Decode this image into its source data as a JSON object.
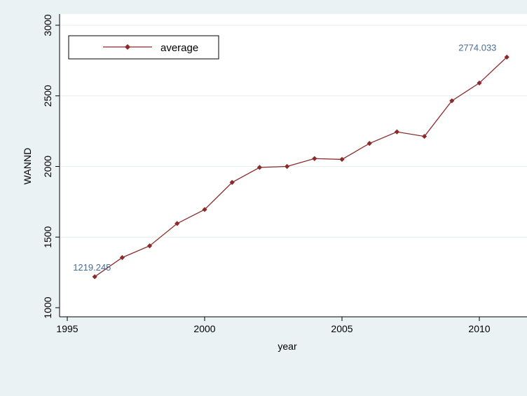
{
  "chart_data": {
    "type": "line",
    "xlabel": "year",
    "ylabel": "WANND",
    "xlim": [
      1995,
      2011
    ],
    "ylim": [
      1000,
      3000
    ],
    "x_ticks": [
      1995,
      2000,
      2005,
      2010
    ],
    "y_ticks": [
      1000,
      1500,
      2000,
      2500,
      3000
    ],
    "grid": true,
    "legend_position": "top-left",
    "series": [
      {
        "name": "average",
        "color": "#8b2a2a",
        "marker": "diamond",
        "x": [
          1996,
          1997,
          1998,
          1999,
          2000,
          2001,
          2002,
          2003,
          2004,
          2005,
          2006,
          2007,
          2008,
          2009,
          2010,
          2011
        ],
        "y": [
          1219.245,
          1355,
          1438,
          1596,
          1695,
          1887,
          1993,
          2000,
          2056,
          2050,
          2163,
          2245,
          2213,
          2465,
          2591,
          2774.033
        ]
      }
    ],
    "annotations": [
      {
        "label": "1219.245",
        "x": 1996,
        "y": 1219.245,
        "color": "#4a6d95"
      },
      {
        "label": "2774.033",
        "x": 2011,
        "y": 2774.033,
        "color": "#4a6d95"
      }
    ],
    "colors": {
      "background": "#eaf2f3",
      "plot_area": "#ffffff",
      "grid": "#e6eeee",
      "axis": "#000000"
    }
  }
}
